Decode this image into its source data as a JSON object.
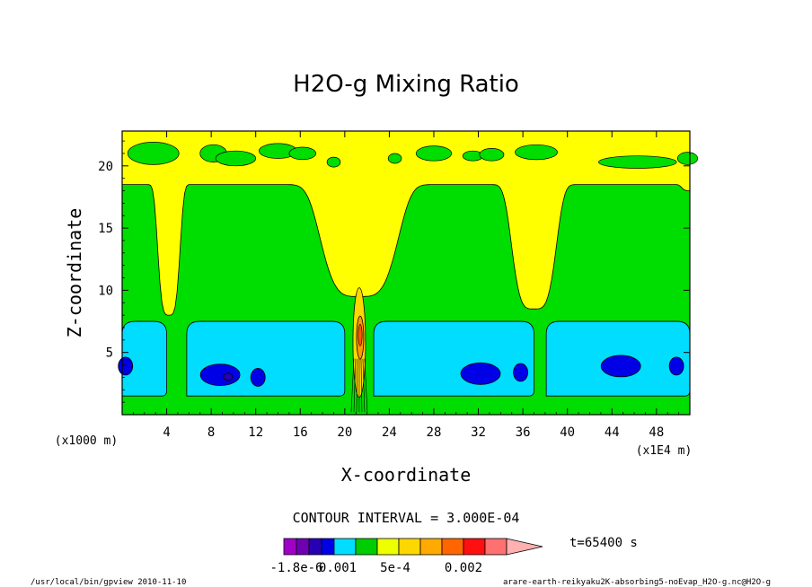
{
  "chart_data": {
    "type": "heatmap",
    "title": "H2O-g Mixing Ratio",
    "xlabel": "X-coordinate",
    "ylabel": "Z-coordinate",
    "x_unit_left": "(x1000 m)",
    "x_unit_right": "(x1E4 m)",
    "xlim": [
      0,
      51
    ],
    "ylim": [
      0,
      22.8
    ],
    "x_ticks": [
      "4",
      "8",
      "12",
      "16",
      "20",
      "24",
      "28",
      "32",
      "36",
      "40",
      "44",
      "48"
    ],
    "x_tick_values": [
      4,
      8,
      12,
      16,
      20,
      24,
      28,
      32,
      36,
      40,
      44,
      48
    ],
    "y_ticks": [
      "5",
      "10",
      "15",
      "20"
    ],
    "y_tick_values": [
      5,
      10,
      15,
      20
    ],
    "contour_interval_text": "CONTOUR INTERVAL = 3.000E-04",
    "time_label": "t=65400 s",
    "colorbar_labels": [
      "-1.8e-6",
      "0.001",
      "5e-4",
      "0.002"
    ],
    "colorbar_colors": [
      "#a000c8",
      "#6e00b4",
      "#2800b4",
      "#0000e6",
      "#00ddff",
      "#00cc00",
      "#eeff00",
      "#ffd700",
      "#ffaa00",
      "#ff6600",
      "#ff1010",
      "#ff7070",
      "#ffb0b0"
    ],
    "colors": {
      "high": "#ffff00",
      "mid": "#00dd00",
      "low": "#00ddff",
      "lowest": "#0000e6",
      "peak_orange": "#ff9900",
      "peak_red": "#ff5500"
    },
    "layers": {
      "green_top_km": 18.5,
      "cyan_top_km": 7.5,
      "green_bottom_km": 1.5
    },
    "wells_center_x": [
      5,
      21.3,
      37.5,
      50
    ],
    "blue_pools": [
      {
        "x_center": 8.8,
        "z_center": 3.2
      },
      {
        "x_center": 12.2,
        "z_center": 3.0
      },
      {
        "x_center": 32.2,
        "z_center": 3.3
      },
      {
        "x_center": 35.8,
        "z_center": 3.4
      },
      {
        "x_center": 44.8,
        "z_center": 3.9
      },
      {
        "x_center": 49.8,
        "z_center": 3.9
      },
      {
        "x_center": 0.3,
        "z_center": 3.9
      }
    ],
    "spike": {
      "x_center": 21.3,
      "z_center": 5.8,
      "z_top": 9.3
    }
  },
  "footer": {
    "left": "/usr/local/bin/gpview  2010-11-10",
    "right": "arare-earth-reikyaku2K-absorbing5-noEvap_H2O-g.nc@H2O-g"
  }
}
